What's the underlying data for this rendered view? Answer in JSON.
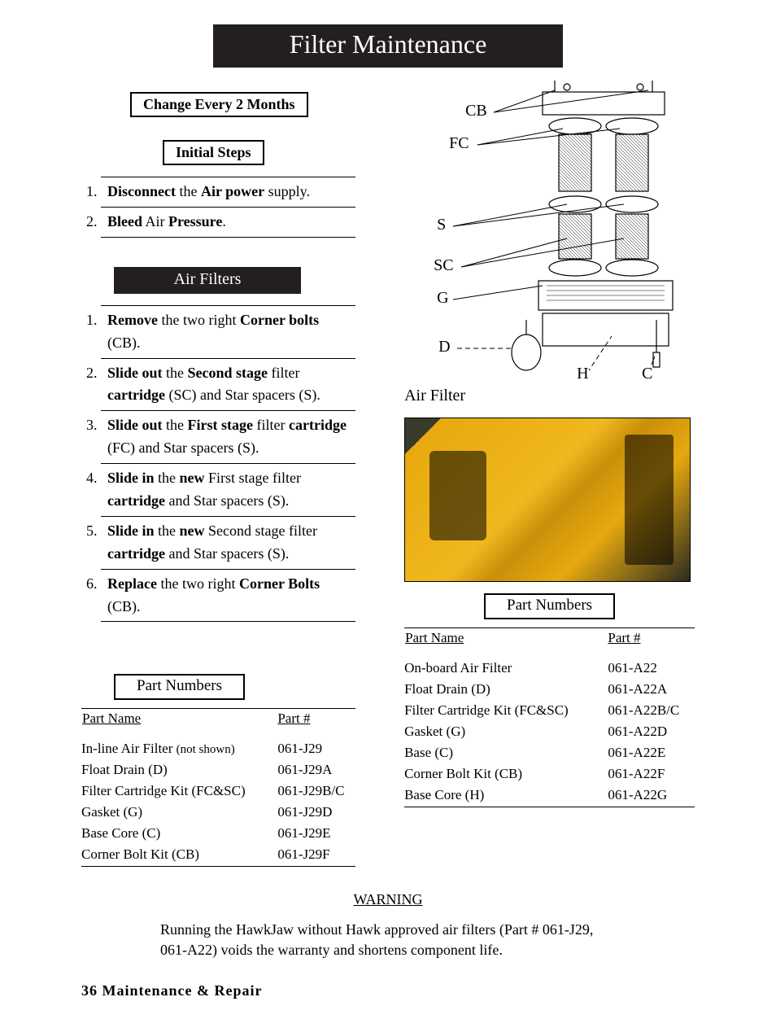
{
  "title": "Filter Maintenance",
  "change_box": "Change Every 2 Months",
  "initial_box": "Initial Steps",
  "initial_steps": [
    "<b>Disconnect</b> the <b>Air power</b> supply.",
    "<b>Bleed</b> Air <b>Pressure</b>."
  ],
  "air_filters_heading": "Air Filters",
  "air_steps": [
    "<b>Remove</b> the two right <b>Corner bolts</b> (CB).",
    "<b>Slide out</b> the <b>Second stage</b> filter <b>cartridge</b> (SC) and Star spacers (S).",
    "<b>Slide out</b> the <b>First stage</b> filter <b>cartridge</b> (FC) and Star spacers (S).",
    "<b>Slide in</b> the <b>new</b> First stage filter <b>cartridge</b> and Star spacers (S).",
    "<b>Slide in</b> the <b>new</b> Second stage filter <b>cartridge</b> and Star spacers (S).",
    "<b>Replace</b> the two right <b>Corner Bolts</b> (CB)."
  ],
  "diagram_labels": {
    "CB": "CB",
    "FC": "FC",
    "S": "S",
    "SC": "SC",
    "G": "G",
    "D": "D",
    "H": "H",
    "C": "C",
    "AirFilter": "Air Filter"
  },
  "part_numbers_heading": "Part Numbers",
  "part_header": {
    "name": "Part Name",
    "num": "Part #"
  },
  "parts_left": [
    {
      "name": "In-line Air Filter <span class='small'>(not shown)</span>",
      "num": "061-J29"
    },
    {
      "name": "Float Drain (D)",
      "num": "061-J29A"
    },
    {
      "name": "Filter Cartridge Kit (FC&SC)",
      "num": "061-J29B/C"
    },
    {
      "name": "Gasket (G)",
      "num": "061-J29D"
    },
    {
      "name": "Base Core (C)",
      "num": "061-J29E"
    },
    {
      "name": "Corner Bolt Kit (CB)",
      "num": "061-J29F"
    }
  ],
  "parts_right": [
    {
      "name": "On-board Air Filter",
      "num": "061-A22"
    },
    {
      "name": "Float Drain (D)",
      "num": "061-A22A"
    },
    {
      "name": "Filter Cartridge Kit (FC&SC)",
      "num": "061-A22B/C"
    },
    {
      "name": "Gasket (G)",
      "num": "061-A22D"
    },
    {
      "name": "Base   (C)",
      "num": "061-A22E"
    },
    {
      "name": "Corner Bolt Kit (CB)",
      "num": "061-A22F"
    },
    {
      "name": "Base Core (H)",
      "num": "061-A22G"
    }
  ],
  "warning_heading": "WARNING",
  "warning_text": "Running the HawkJaw without Hawk approved air filters (Part # 061-J29,  061-A22) voids the warranty and shortens component life.",
  "footer": "36    Maintenance & Repair"
}
